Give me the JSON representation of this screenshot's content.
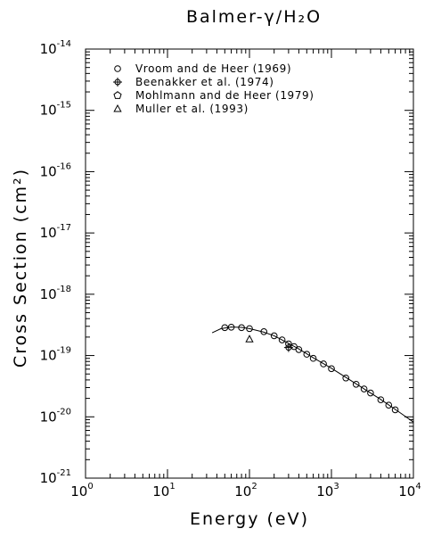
{
  "chart_data": {
    "type": "scatter",
    "title": "Balmer-γ/H₂O",
    "xlabel": "Energy (eV)",
    "ylabel": "Cross Section (cm²)",
    "xscale": "log",
    "yscale": "log",
    "xlim": [
      1,
      10000
    ],
    "ylim": [
      1e-21,
      1e-14
    ],
    "x_ticks": [
      {
        "base": "10",
        "exp": "0",
        "value": 1
      },
      {
        "base": "10",
        "exp": "1",
        "value": 10
      },
      {
        "base": "10",
        "exp": "2",
        "value": 100
      },
      {
        "base": "10",
        "exp": "3",
        "value": 1000
      },
      {
        "base": "10",
        "exp": "4",
        "value": 10000
      }
    ],
    "y_ticks": [
      {
        "base": "10",
        "exp": "-21",
        "value": 1e-21
      },
      {
        "base": "10",
        "exp": "-20",
        "value": 1e-20
      },
      {
        "base": "10",
        "exp": "-19",
        "value": 1e-19
      },
      {
        "base": "10",
        "exp": "-18",
        "value": 1e-18
      },
      {
        "base": "10",
        "exp": "-17",
        "value": 1e-17
      },
      {
        "base": "10",
        "exp": "-16",
        "value": 1e-16
      },
      {
        "base": "10",
        "exp": "-15",
        "value": 1e-15
      },
      {
        "base": "10",
        "exp": "-14",
        "value": 1e-14
      }
    ],
    "legend_position": "top-left",
    "grid": false,
    "series": [
      {
        "name": "Vroom and de Heer (1969)",
        "marker": "circle",
        "x": [
          50,
          60,
          80,
          100,
          150,
          200,
          250,
          300,
          350,
          400,
          500,
          600,
          800,
          1000,
          1500,
          2000,
          2500,
          3000,
          4000,
          5000,
          6000
        ],
        "y": [
          2.85e-19,
          2.9e-19,
          2.85e-19,
          2.75e-19,
          2.45e-19,
          2.1e-19,
          1.8e-19,
          1.55e-19,
          1.4e-19,
          1.25e-19,
          1.05e-19,
          9e-20,
          7.3e-20,
          6.1e-20,
          4.3e-20,
          3.4e-20,
          2.85e-20,
          2.45e-20,
          1.9e-20,
          1.55e-20,
          1.3e-20
        ]
      },
      {
        "name": "Beenakker et al. (1974)",
        "marker": "plus-circle",
        "x": [
          300
        ],
        "y": [
          1.35e-19
        ]
      },
      {
        "name": "Mohlmann and de Heer (1979)",
        "marker": "pentagon",
        "x": [],
        "y": []
      },
      {
        "name": "Muller et al. (1993)",
        "marker": "triangle",
        "x": [
          100
        ],
        "y": [
          1.85e-19
        ]
      }
    ],
    "fit_curve": {
      "x": [
        35,
        45,
        60,
        80,
        100,
        150,
        200,
        300,
        400,
        600,
        1000,
        2000,
        4000,
        7000,
        10000
      ],
      "y": [
        2.35e-19,
        2.75e-19,
        2.92e-19,
        2.88e-19,
        2.75e-19,
        2.4e-19,
        2.1e-19,
        1.58e-19,
        1.28e-19,
        9.2e-20,
        6.2e-20,
        3.45e-20,
        1.92e-20,
        1.15e-20,
        8.2e-21
      ]
    }
  }
}
